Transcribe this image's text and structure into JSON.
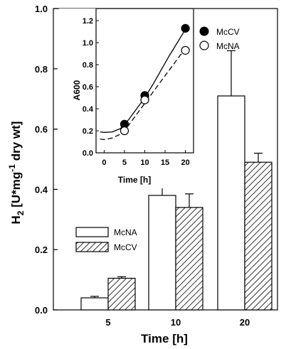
{
  "chart_data": [
    {
      "type": "bar",
      "xlabel": "Time [h]",
      "ylabel_main": "H",
      "ylabel_sub": "2",
      "ylabel_rest": " [U*mg",
      "ylabel_sup": "-1",
      "ylabel_end": " dry wt]",
      "categories": [
        "5",
        "10",
        "20"
      ],
      "ylim": [
        0,
        1.0
      ],
      "yticks": [
        "0.0",
        "0.2",
        "0.4",
        "0.6",
        "0.8",
        "1.0"
      ],
      "series": [
        {
          "name": "McNA",
          "pattern": "open",
          "values": [
            0.04,
            0.38,
            0.71
          ],
          "errors": [
            0.005,
            0.07,
            0.15
          ]
        },
        {
          "name": "McCV",
          "pattern": "hatched",
          "values": [
            0.105,
            0.34,
            0.49
          ],
          "errors": [
            0.005,
            0.045,
            0.03
          ]
        }
      ],
      "legend_placement": "lower-left"
    },
    {
      "type": "scatter",
      "inset": true,
      "xlabel": "Time [h]",
      "ylabel": "A600",
      "xlim": [
        -2,
        22
      ],
      "ylim": [
        0,
        1.2
      ],
      "xticks": [
        "0",
        "5",
        "10",
        "15",
        "20"
      ],
      "yticks": [
        "0.0",
        "0.2",
        "0.4",
        "0.6",
        "0.8",
        "1.0",
        "1.2"
      ],
      "series": [
        {
          "name": "McCV",
          "marker": "filled-circle",
          "line": "solid",
          "x": [
            5,
            10,
            20
          ],
          "y": [
            0.26,
            0.52,
            1.13
          ]
        },
        {
          "name": "McNA",
          "marker": "open-circle",
          "line": "dashed",
          "x": [
            5,
            10,
            20
          ],
          "y": [
            0.2,
            0.48,
            0.93
          ]
        }
      ],
      "fit_lines": [
        {
          "style": "solid",
          "x": [
            -1,
            0,
            2,
            4,
            6,
            8,
            10,
            12,
            14,
            16,
            18,
            20
          ],
          "y": [
            0.19,
            0.185,
            0.19,
            0.22,
            0.3,
            0.4,
            0.5,
            0.62,
            0.75,
            0.88,
            1.0,
            1.12
          ]
        },
        {
          "style": "dashed",
          "x": [
            -1,
            0,
            2,
            4,
            6,
            8,
            10,
            12,
            14,
            16,
            18,
            20
          ],
          "y": [
            0.125,
            0.12,
            0.135,
            0.17,
            0.25,
            0.35,
            0.45,
            0.55,
            0.65,
            0.75,
            0.85,
            0.95
          ]
        }
      ],
      "legend_placement": "top-right"
    }
  ]
}
